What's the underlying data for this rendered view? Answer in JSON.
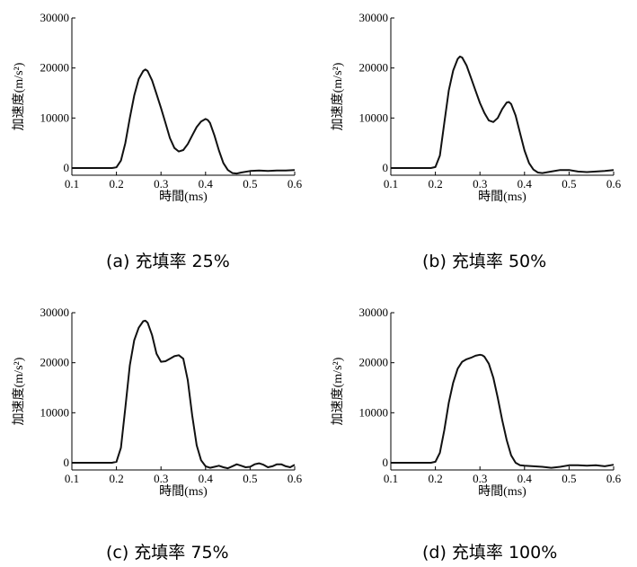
{
  "chart_data": [
    {
      "type": "line",
      "caption": "(a) 充填率 25%",
      "xlabel": "時間(ms)",
      "ylabel": "加速度(m/s²)",
      "xlim": [
        0.1,
        0.6
      ],
      "ylim": [
        0,
        30000
      ],
      "xticks": [
        "0.1",
        "0.2",
        "0.3",
        "0.4",
        "0.5",
        "0.6"
      ],
      "yticks": [
        "0",
        "10000",
        "20000",
        "30000"
      ],
      "series": [
        {
          "x": [
            0.1,
            0.15,
            0.19,
            0.2,
            0.21,
            0.22,
            0.23,
            0.24,
            0.25,
            0.26,
            0.265,
            0.27,
            0.28,
            0.29,
            0.3,
            0.31,
            0.32,
            0.33,
            0.34,
            0.35,
            0.36,
            0.37,
            0.38,
            0.39,
            0.4,
            0.405,
            0.41,
            0.42,
            0.43,
            0.44,
            0.45,
            0.46,
            0.47,
            0.48,
            0.5,
            0.52,
            0.54,
            0.56,
            0.58,
            0.6
          ],
          "y": [
            0,
            0,
            0,
            150,
            1500,
            5000,
            10000,
            14500,
            17800,
            19400,
            19700,
            19400,
            17500,
            14800,
            12000,
            9000,
            6000,
            4000,
            3300,
            3600,
            4800,
            6500,
            8200,
            9300,
            9800,
            9600,
            9000,
            6500,
            3500,
            1000,
            -400,
            -1000,
            -1100,
            -900,
            -600,
            -500,
            -600,
            -500,
            -500,
            -400
          ]
        }
      ]
    },
    {
      "type": "line",
      "caption": "(b) 充填率 50%",
      "xlabel": "時間(ms)",
      "ylabel": "加速度(m/s²)",
      "xlim": [
        0.1,
        0.6
      ],
      "ylim": [
        0,
        30000
      ],
      "xticks": [
        "0.1",
        "0.2",
        "0.3",
        "0.4",
        "0.5",
        "0.6"
      ],
      "yticks": [
        "0",
        "10000",
        "20000",
        "30000"
      ],
      "series": [
        {
          "x": [
            0.1,
            0.15,
            0.19,
            0.2,
            0.21,
            0.22,
            0.23,
            0.24,
            0.25,
            0.255,
            0.26,
            0.27,
            0.28,
            0.29,
            0.3,
            0.31,
            0.32,
            0.33,
            0.34,
            0.35,
            0.36,
            0.365,
            0.37,
            0.38,
            0.39,
            0.4,
            0.41,
            0.42,
            0.43,
            0.44,
            0.46,
            0.48,
            0.5,
            0.52,
            0.54,
            0.56,
            0.58,
            0.6
          ],
          "y": [
            0,
            0,
            0,
            200,
            2500,
            9000,
            15500,
            19500,
            21800,
            22300,
            22100,
            20500,
            18000,
            15500,
            13000,
            11000,
            9500,
            9200,
            10000,
            11800,
            13100,
            13200,
            12800,
            10500,
            7000,
            3500,
            1000,
            -300,
            -900,
            -1000,
            -700,
            -400,
            -400,
            -700,
            -800,
            -700,
            -600,
            -400
          ]
        }
      ]
    },
    {
      "type": "line",
      "caption": "(c) 充填率 75%",
      "xlabel": "時間(ms)",
      "ylabel": "加速度(m/s²)",
      "xlim": [
        0.1,
        0.6
      ],
      "ylim": [
        0,
        30000
      ],
      "xticks": [
        "0.1",
        "0.2",
        "0.3",
        "0.4",
        "0.5",
        "0.6"
      ],
      "yticks": [
        "0",
        "10000",
        "20000",
        "30000"
      ],
      "series": [
        {
          "x": [
            0.1,
            0.15,
            0.19,
            0.2,
            0.21,
            0.22,
            0.23,
            0.24,
            0.25,
            0.26,
            0.265,
            0.27,
            0.28,
            0.29,
            0.3,
            0.31,
            0.32,
            0.33,
            0.34,
            0.35,
            0.36,
            0.37,
            0.38,
            0.39,
            0.4,
            0.41,
            0.42,
            0.43,
            0.44,
            0.45,
            0.46,
            0.47,
            0.48,
            0.49,
            0.5,
            0.51,
            0.52,
            0.53,
            0.54,
            0.55,
            0.56,
            0.57,
            0.58,
            0.59,
            0.6
          ],
          "y": [
            0,
            0,
            0,
            200,
            3000,
            11000,
            19500,
            24500,
            27000,
            28300,
            28400,
            28000,
            25500,
            21800,
            20200,
            20300,
            20800,
            21300,
            21500,
            20800,
            16500,
            9500,
            3500,
            500,
            -700,
            -1000,
            -800,
            -600,
            -900,
            -1100,
            -700,
            -300,
            -600,
            -900,
            -800,
            -300,
            -100,
            -400,
            -900,
            -700,
            -300,
            -300,
            -700,
            -900,
            -400
          ]
        }
      ]
    },
    {
      "type": "line",
      "caption": "(d) 充填率 100%",
      "xlabel": "時間(ms)",
      "ylabel": "加速度(m/s²)",
      "xlim": [
        0.1,
        0.6
      ],
      "ylim": [
        0,
        30000
      ],
      "xticks": [
        "0.1",
        "0.2",
        "0.3",
        "0.4",
        "0.5",
        "0.6"
      ],
      "yticks": [
        "0",
        "10000",
        "20000",
        "30000"
      ],
      "series": [
        {
          "x": [
            0.1,
            0.15,
            0.19,
            0.2,
            0.21,
            0.22,
            0.23,
            0.24,
            0.25,
            0.26,
            0.27,
            0.28,
            0.29,
            0.3,
            0.305,
            0.31,
            0.32,
            0.33,
            0.34,
            0.35,
            0.36,
            0.37,
            0.38,
            0.39,
            0.4,
            0.42,
            0.44,
            0.46,
            0.48,
            0.5,
            0.52,
            0.54,
            0.56,
            0.58,
            0.6
          ],
          "y": [
            0,
            0,
            0,
            200,
            2000,
            6500,
            12000,
            16000,
            18800,
            20200,
            20700,
            21000,
            21400,
            21600,
            21500,
            21200,
            19800,
            17000,
            13000,
            8500,
            4500,
            1500,
            0,
            -500,
            -600,
            -700,
            -800,
            -1000,
            -800,
            -500,
            -500,
            -600,
            -500,
            -700,
            -400
          ]
        }
      ]
    }
  ]
}
